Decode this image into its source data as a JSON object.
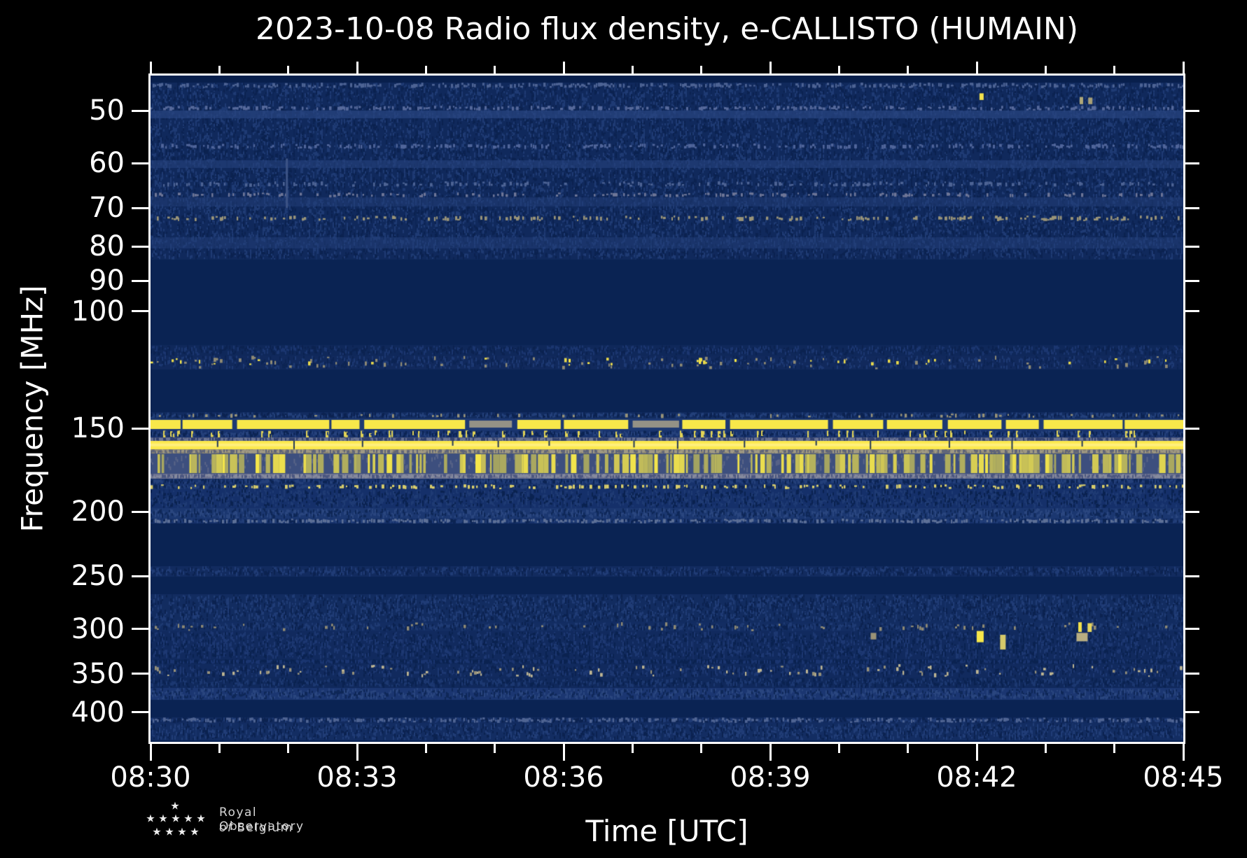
{
  "figure": {
    "title": "2023-10-08 Radio flux density, e-CALLISTO (HUMAIN)",
    "background": "#000000",
    "text_color": "#ffffff"
  },
  "axes": {
    "xlabel": "Time [UTC]",
    "ylabel": "Frequency [MHz]",
    "x_ticks_major": [
      "08:30",
      "08:33",
      "08:36",
      "08:39",
      "08:42",
      "08:45"
    ],
    "x_minor_step_minutes": 1,
    "x_major_step_minutes": 3,
    "minutes_total": 15,
    "y_ticks": [
      50,
      60,
      70,
      80,
      90,
      100,
      150,
      200,
      250,
      300,
      350,
      400
    ],
    "y_scale": "log",
    "freq_top_mhz": 44.3,
    "freq_bottom_mhz": 443,
    "time_start": "08:30",
    "time_end": "08:45"
  },
  "logo": {
    "line1": "Royal Observatory",
    "line2_of": "of",
    "line2_rest": "Belgium"
  },
  "chart_data": {
    "type": "heatmap",
    "title": "2023-10-08 Radio flux density, e-CALLISTO (HUMAIN)",
    "xlabel": "Time [UTC]",
    "ylabel": "Frequency [MHz]",
    "x_range_utc": [
      "08:30",
      "08:45"
    ],
    "y_range_mhz": [
      44.3,
      443
    ],
    "colormap": {
      "low": "#0a2353",
      "mid": "#7b7b78",
      "high": "#f8e84a",
      "style": "cividis-like dark blue to yellow"
    },
    "bands": [
      {
        "f": [
          44.3,
          45.4
        ],
        "kind": "flat",
        "base": "#081f4c"
      },
      {
        "f": [
          45.4,
          83.6
        ],
        "kind": "noise",
        "base": "#10295c",
        "light": "#1f3b74",
        "dark": "#0b2250",
        "density": 0.9,
        "streaks": true
      },
      {
        "f": [
          45.4,
          46.3
        ],
        "kind": "dots",
        "color": "#4d6394",
        "density": 0.5
      },
      {
        "f": [
          49.2,
          50.0
        ],
        "kind": "dots",
        "color": "#56699b",
        "density": 0.45
      },
      {
        "f": [
          50.0,
          51.4
        ],
        "kind": "haze",
        "color": "#2a4681",
        "alpha": 0.7
      },
      {
        "f": [
          56.0,
          57.1
        ],
        "kind": "dots",
        "color": "#50659a",
        "density": 0.4
      },
      {
        "f": [
          59.3,
          60.9
        ],
        "kind": "haze",
        "color": "#27437d",
        "alpha": 0.6
      },
      {
        "f": [
          63.9,
          65.1
        ],
        "kind": "dots",
        "color": "#4d6394",
        "density": 0.35
      },
      {
        "f": [
          66.3,
          67.5
        ],
        "kind": "dots",
        "color": "#6e7697",
        "density": 0.3
      },
      {
        "f": [
          67.5,
          69.7
        ],
        "kind": "haze",
        "color": "#24407a",
        "alpha": 0.5
      },
      {
        "f": [
          71.8,
          73.3
        ],
        "kind": "dots",
        "color": "#9a9478",
        "density": 0.3
      },
      {
        "f": [
          77.4,
          80.5
        ],
        "kind": "haze",
        "color": "#23407a",
        "alpha": 0.5
      },
      {
        "f": [
          83.6,
          112.5
        ],
        "kind": "flat",
        "base": "#0a2353"
      },
      {
        "f": [
          112.5,
          116.7
        ],
        "kind": "noise",
        "base": "#0f285a",
        "light": "#1b3670",
        "dark": "#0b2250",
        "density": 0.7
      },
      {
        "f": [
          116.7,
          122.3
        ],
        "kind": "noise",
        "base": "#11295c",
        "light": "#1d3973",
        "dark": "#0c2453",
        "density": 0.6
      },
      {
        "f": [
          116.7,
          122.3
        ],
        "kind": "dots",
        "color": "#8f8a74",
        "density": 0.12
      },
      {
        "f": [
          117.5,
          121.0
        ],
        "kind": "dots",
        "color": "#e9d94b",
        "density": 0.06
      },
      {
        "f": [
          117.8,
          120.5
        ],
        "kind": "dots",
        "color": "#f8e84a",
        "density": 0.025
      },
      {
        "f": [
          122.3,
          141.8
        ],
        "kind": "flat",
        "base": "#0a2353"
      },
      {
        "f": [
          141.8,
          144.9
        ],
        "kind": "noise",
        "base": "#122c60",
        "light": "#23407a",
        "dark": "#0b2250",
        "density": 0.8
      },
      {
        "f": [
          142.5,
          144.5
        ],
        "kind": "dots",
        "color": "#9a9478",
        "density": 0.1
      },
      {
        "f": [
          144.9,
          150.9
        ],
        "kind": "dashband",
        "base": "#1d3973",
        "yellow": "#f8e84a",
        "alt": "#a9a289"
      },
      {
        "f": [
          150.9,
          154.6
        ],
        "kind": "noise",
        "base": "#17326c",
        "light": "#26427c",
        "dark": "#0c2453",
        "density": 0.85,
        "ystreaks": {
          "color": "#e3d456",
          "density": 0.1
        }
      },
      {
        "f": [
          154.6,
          156.4
        ],
        "kind": "noise",
        "base": "#4d587e",
        "light": "#6b7494",
        "dark": "#31406f",
        "density": 0.6
      },
      {
        "f": [
          156.4,
          161.1
        ],
        "kind": "line",
        "color": "#fce94e",
        "notch": "#0c2554"
      },
      {
        "f": [
          161.1,
          163.4
        ],
        "kind": "noise",
        "base": "#8a8472",
        "light": "#a09a84",
        "dark": "#5f6579",
        "density": 0.5
      },
      {
        "f": [
          163.4,
          175.4
        ],
        "kind": "streaks",
        "base": "#3d4f7e",
        "light": "#5a6588",
        "yellow": "#f6e74b",
        "density": 0.3
      },
      {
        "f": [
          175.4,
          178.4
        ],
        "kind": "noise",
        "base": "#6e7390",
        "light": "#858a9e",
        "dark": "#4a5680",
        "density": 0.5
      },
      {
        "f": [
          178.4,
          181.8
        ],
        "kind": "noise",
        "base": "#17326c",
        "light": "#24407a",
        "dark": "#0c2453",
        "density": 0.8
      },
      {
        "f": [
          181.8,
          184.9
        ],
        "kind": "noise",
        "base": "#16316a",
        "light": "#223e78",
        "dark": "#0c2453",
        "density": 0.7
      },
      {
        "f": [
          181.8,
          184.9
        ],
        "kind": "dots",
        "color": "#d9cd6b",
        "density": 0.3
      },
      {
        "f": [
          184.9,
          197.6
        ],
        "kind": "noise",
        "base": "#15306a",
        "light": "#1f3b74",
        "dark": "#0a2250",
        "density": 0.85,
        "streaks": true
      },
      {
        "f": [
          197.6,
          204.7
        ],
        "kind": "noise",
        "base": "#1b3770",
        "light": "#2a467f",
        "dark": "#0e2757",
        "density": 0.8
      },
      {
        "f": [
          204.7,
          208.1
        ],
        "kind": "noise",
        "base": "#16316a",
        "light": "#223e78",
        "dark": "#0c2453",
        "density": 0.6
      },
      {
        "f": [
          204.7,
          208.1
        ],
        "kind": "dots",
        "color": "#5d7097",
        "density": 0.5
      },
      {
        "f": [
          208.1,
          241.2
        ],
        "kind": "flat",
        "base": "#0a2353"
      },
      {
        "f": [
          241.2,
          250.3
        ],
        "kind": "noise",
        "base": "#122b5f",
        "light": "#203c76",
        "dark": "#0b2250",
        "density": 0.8
      },
      {
        "f": [
          250.3,
          266.0
        ],
        "kind": "flat",
        "base": "#0a2353"
      },
      {
        "f": [
          266.0,
          292.6
        ],
        "kind": "noise",
        "base": "#122c60",
        "light": "#203c76",
        "dark": "#0b2250",
        "density": 0.85,
        "streaks": true
      },
      {
        "f": [
          292.6,
          302.0
        ],
        "kind": "noise",
        "base": "#132d62",
        "light": "#1f3b74",
        "dark": "#0b2250",
        "density": 0.7
      },
      {
        "f": [
          292.6,
          302.0
        ],
        "kind": "dots",
        "color": "#8f8a74",
        "density": 0.12
      },
      {
        "f": [
          302.0,
          332.7
        ],
        "kind": "noise",
        "base": "#112a5e",
        "light": "#1d3872",
        "dark": "#0a2250",
        "density": 0.85,
        "streaks": true
      },
      {
        "f": [
          332.7,
          339.0
        ],
        "kind": "noise",
        "base": "#0f285a",
        "light": "#1a3570",
        "dark": "#0a2250",
        "density": 0.7
      },
      {
        "f": [
          339.0,
          354.6
        ],
        "kind": "noise",
        "base": "#112a5e",
        "light": "#1d3872",
        "dark": "#0b2250",
        "density": 0.75
      },
      {
        "f": [
          339.0,
          354.6
        ],
        "kind": "dots",
        "color": "#beb592",
        "density": 0.12
      },
      {
        "f": [
          340.0,
          353.0
        ],
        "kind": "dots",
        "color": "#98927a",
        "density": 0.1
      },
      {
        "f": [
          354.6,
          367.6
        ],
        "kind": "noise",
        "base": "#10295c",
        "light": "#1c3871",
        "dark": "#0a2250",
        "density": 0.8
      },
      {
        "f": [
          367.6,
          383.1
        ],
        "kind": "noise",
        "base": "#1b3671",
        "light": "#2a467f",
        "dark": "#0e2757",
        "density": 0.85
      },
      {
        "f": [
          383.1,
          406.6
        ],
        "kind": "flat",
        "base": "#0a2353"
      },
      {
        "f": [
          406.6,
          414.6
        ],
        "kind": "noise",
        "base": "#122b5f",
        "light": "#203c76",
        "dark": "#0b2250",
        "density": 0.6
      },
      {
        "f": [
          406.6,
          414.6
        ],
        "kind": "dots",
        "color": "#4f6493",
        "density": 0.5
      },
      {
        "f": [
          414.6,
          441.0
        ],
        "kind": "noise",
        "base": "#132d62",
        "light": "#213d77",
        "dark": "#0b2250",
        "density": 0.85,
        "streaks": true
      },
      {
        "f": [
          441.0,
          443.0
        ],
        "kind": "flat",
        "base": "#0a2454"
      }
    ],
    "features": [
      {
        "t_min": 1.98,
        "f": [
          59,
          70
        ],
        "w": 3,
        "color": "#3d5486"
      },
      {
        "t_min": 12.07,
        "f": [
          47.1,
          48.2
        ],
        "w": 6,
        "color": "#f2e14c"
      },
      {
        "t_min": 13.52,
        "f": [
          47.7,
          48.9
        ],
        "w": 5,
        "color": "#b0a878"
      },
      {
        "t_min": 13.65,
        "f": [
          47.8,
          48.9
        ],
        "w": 6,
        "color": "#a8a076"
      },
      {
        "t_min": 10.5,
        "f": [
          304,
          311
        ],
        "w": 8,
        "color": "#9a9276"
      },
      {
        "t_min": 12.05,
        "f": [
          302,
          314
        ],
        "w": 10,
        "color": "#f7e74a"
      },
      {
        "t_min": 12.38,
        "f": [
          306,
          322
        ],
        "w": 8,
        "color": "#d6c96a"
      },
      {
        "t_min": 13.5,
        "f": [
          293,
          303
        ],
        "w": 5,
        "color": "#f2e14c"
      },
      {
        "t_min": 13.64,
        "f": [
          294,
          303
        ],
        "w": 6,
        "color": "#e8d75c"
      },
      {
        "t_min": 13.53,
        "f": [
          304,
          313
        ],
        "w": 16,
        "color": "#b8ae82"
      }
    ]
  }
}
